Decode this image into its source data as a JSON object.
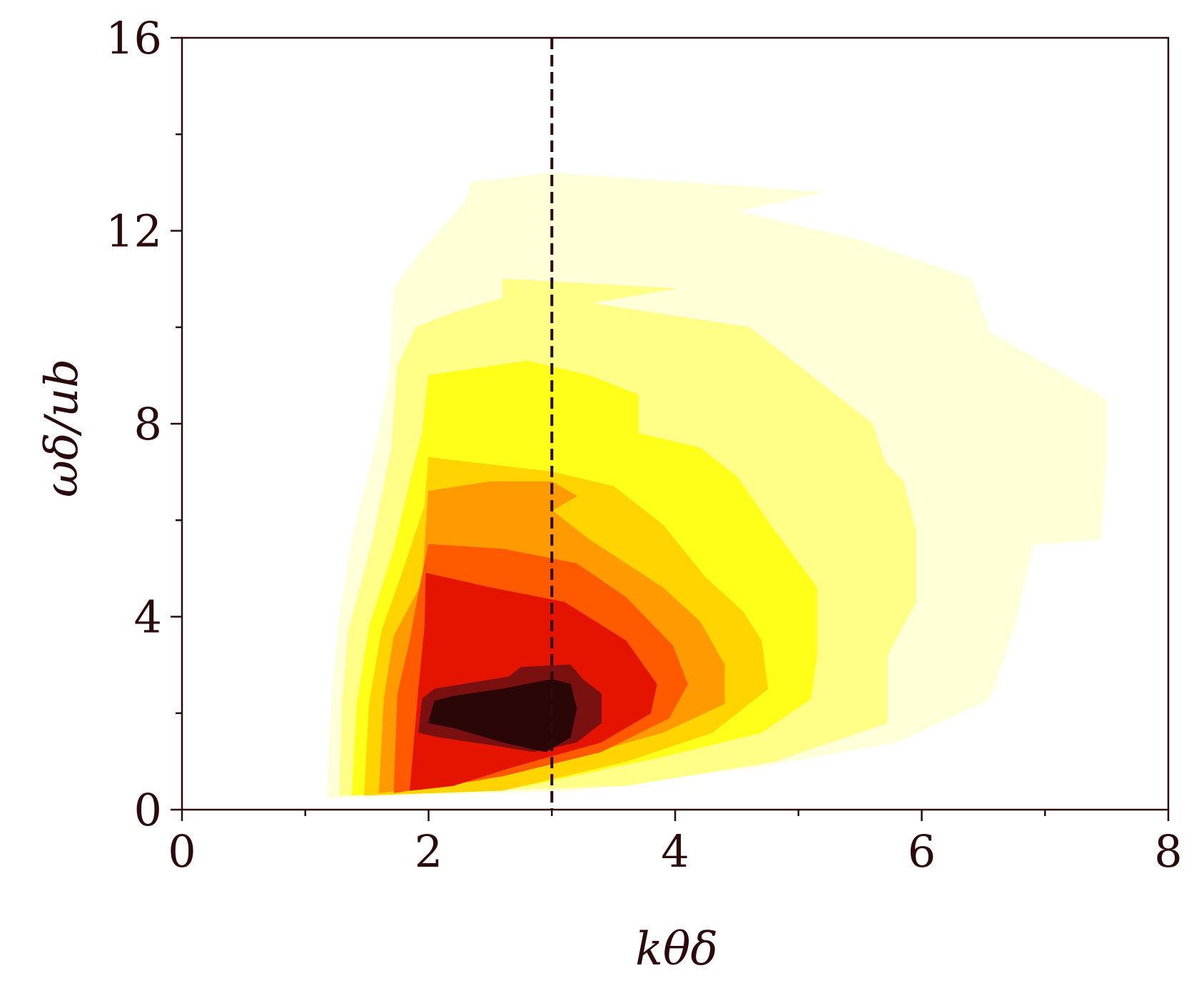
{
  "chart_data": {
    "type": "contour",
    "xlabel": "kθδ",
    "ylabel": "ωδ/ub",
    "xlim": [
      0,
      8
    ],
    "ylim": [
      0,
      16
    ],
    "x_ticks": [
      "0",
      "2",
      "4",
      "6",
      "8"
    ],
    "y_ticks": [
      "0",
      "4",
      "8",
      "12",
      "16"
    ],
    "x_minor_step": 1,
    "y_minor_step": 2,
    "grid": false,
    "legend": "none",
    "reference_line": {
      "axis": "x",
      "value": 3.0,
      "style": "dashed",
      "color": "#2a0a0a"
    },
    "levels": [
      {
        "color": "#ffffd8",
        "points": [
          [
            1.18,
            0.25
          ],
          [
            1.22,
            2.5
          ],
          [
            1.28,
            4.0
          ],
          [
            1.38,
            5.6
          ],
          [
            1.55,
            7.3
          ],
          [
            1.68,
            8.9
          ],
          [
            1.72,
            10.8
          ],
          [
            1.95,
            11.6
          ],
          [
            2.3,
            12.6
          ],
          [
            2.35,
            13.0
          ],
          [
            3.0,
            13.2
          ],
          [
            5.2,
            12.8
          ],
          [
            4.5,
            12.4
          ],
          [
            5.5,
            11.8
          ],
          [
            6.4,
            11.0
          ],
          [
            6.55,
            9.9
          ],
          [
            7.5,
            8.5
          ],
          [
            7.5,
            7.3
          ],
          [
            7.45,
            5.6
          ],
          [
            6.9,
            5.5
          ],
          [
            6.75,
            3.8
          ],
          [
            6.55,
            2.3
          ],
          [
            5.8,
            1.4
          ],
          [
            4.7,
            0.9
          ],
          [
            3.2,
            0.4
          ]
        ]
      },
      {
        "color": "#ffff88",
        "points": [
          [
            1.28,
            0.3
          ],
          [
            1.3,
            2.2
          ],
          [
            1.35,
            3.7
          ],
          [
            1.55,
            5.6
          ],
          [
            1.7,
            7.5
          ],
          [
            1.75,
            9.2
          ],
          [
            1.9,
            10.0
          ],
          [
            2.2,
            10.3
          ],
          [
            2.6,
            10.6
          ],
          [
            2.6,
            11.0
          ],
          [
            4.0,
            10.8
          ],
          [
            3.3,
            10.5
          ],
          [
            4.6,
            10.0
          ],
          [
            5.1,
            9.0
          ],
          [
            5.6,
            8.0
          ],
          [
            5.7,
            7.2
          ],
          [
            5.85,
            6.8
          ],
          [
            5.95,
            5.8
          ],
          [
            5.95,
            4.3
          ],
          [
            5.72,
            3.2
          ],
          [
            5.72,
            1.8
          ],
          [
            4.8,
            1.0
          ],
          [
            3.6,
            0.5
          ]
        ]
      },
      {
        "color": "#ffff1a",
        "points": [
          [
            1.38,
            0.3
          ],
          [
            1.42,
            2.2
          ],
          [
            1.52,
            3.8
          ],
          [
            1.72,
            5.4
          ],
          [
            1.85,
            6.8
          ],
          [
            1.95,
            7.8
          ],
          [
            2.0,
            9.0
          ],
          [
            2.8,
            9.3
          ],
          [
            3.3,
            9.0
          ],
          [
            3.7,
            8.6
          ],
          [
            3.7,
            7.8
          ],
          [
            4.2,
            7.5
          ],
          [
            4.5,
            6.9
          ],
          [
            4.8,
            5.8
          ],
          [
            5.15,
            4.6
          ],
          [
            5.15,
            3.2
          ],
          [
            5.1,
            2.3
          ],
          [
            4.7,
            1.6
          ],
          [
            3.9,
            1.1
          ],
          [
            2.8,
            0.5
          ]
        ]
      },
      {
        "color": "#ffd400",
        "points": [
          [
            1.48,
            0.3
          ],
          [
            1.52,
            2.2
          ],
          [
            1.62,
            3.7
          ],
          [
            1.8,
            5.0
          ],
          [
            1.97,
            6.3
          ],
          [
            2.0,
            7.3
          ],
          [
            3.0,
            7.0
          ],
          [
            3.5,
            6.7
          ],
          [
            3.9,
            5.9
          ],
          [
            4.25,
            4.8
          ],
          [
            4.55,
            4.1
          ],
          [
            4.7,
            3.5
          ],
          [
            4.75,
            2.5
          ],
          [
            4.3,
            1.6
          ],
          [
            3.6,
            1.0
          ],
          [
            2.6,
            0.4
          ]
        ]
      },
      {
        "color": "#ff9b00",
        "points": [
          [
            1.6,
            0.35
          ],
          [
            1.64,
            2.3
          ],
          [
            1.72,
            3.6
          ],
          [
            1.95,
            4.7
          ],
          [
            2.0,
            6.6
          ],
          [
            2.5,
            6.8
          ],
          [
            3.0,
            6.8
          ],
          [
            3.2,
            6.5
          ],
          [
            3.0,
            6.2
          ],
          [
            3.3,
            5.6
          ],
          [
            3.9,
            4.6
          ],
          [
            4.2,
            3.9
          ],
          [
            4.4,
            3.0
          ],
          [
            4.4,
            2.2
          ],
          [
            3.9,
            1.6
          ],
          [
            3.2,
            1.1
          ],
          [
            2.4,
            0.6
          ]
        ]
      },
      {
        "color": "#ff5a00",
        "points": [
          [
            1.72,
            0.35
          ],
          [
            1.75,
            2.4
          ],
          [
            1.85,
            3.5
          ],
          [
            1.92,
            4.5
          ],
          [
            2.0,
            5.5
          ],
          [
            2.6,
            5.4
          ],
          [
            3.2,
            5.1
          ],
          [
            3.6,
            4.4
          ],
          [
            3.98,
            3.4
          ],
          [
            4.1,
            2.6
          ],
          [
            3.95,
            1.9
          ],
          [
            3.4,
            1.2
          ],
          [
            2.6,
            0.7
          ]
        ]
      },
      {
        "color": "#e41400",
        "points": [
          [
            1.85,
            0.4
          ],
          [
            1.92,
            2.5
          ],
          [
            1.97,
            3.8
          ],
          [
            1.98,
            4.9
          ],
          [
            2.5,
            4.6
          ],
          [
            3.1,
            4.3
          ],
          [
            3.6,
            3.5
          ],
          [
            3.85,
            2.6
          ],
          [
            3.8,
            2.0
          ],
          [
            3.4,
            1.4
          ],
          [
            2.7,
            0.9
          ],
          [
            2.2,
            0.5
          ]
        ]
      },
      {
        "color": "#7a1010",
        "points": [
          [
            1.92,
            1.6
          ],
          [
            1.95,
            2.3
          ],
          [
            2.05,
            2.5
          ],
          [
            2.65,
            2.75
          ],
          [
            2.75,
            2.95
          ],
          [
            3.15,
            3.0
          ],
          [
            3.25,
            2.7
          ],
          [
            3.4,
            2.4
          ],
          [
            3.4,
            1.8
          ],
          [
            3.2,
            1.4
          ],
          [
            2.85,
            1.2
          ],
          [
            2.5,
            1.35
          ],
          [
            2.1,
            1.5
          ]
        ]
      },
      {
        "color": "#2a0606",
        "points": [
          [
            2.0,
            1.8
          ],
          [
            2.05,
            2.25
          ],
          [
            2.2,
            2.35
          ],
          [
            2.6,
            2.5
          ],
          [
            3.0,
            2.7
          ],
          [
            3.15,
            2.6
          ],
          [
            3.2,
            2.1
          ],
          [
            3.15,
            1.5
          ],
          [
            2.95,
            1.2
          ],
          [
            2.6,
            1.4
          ],
          [
            2.2,
            1.7
          ]
        ]
      }
    ]
  }
}
